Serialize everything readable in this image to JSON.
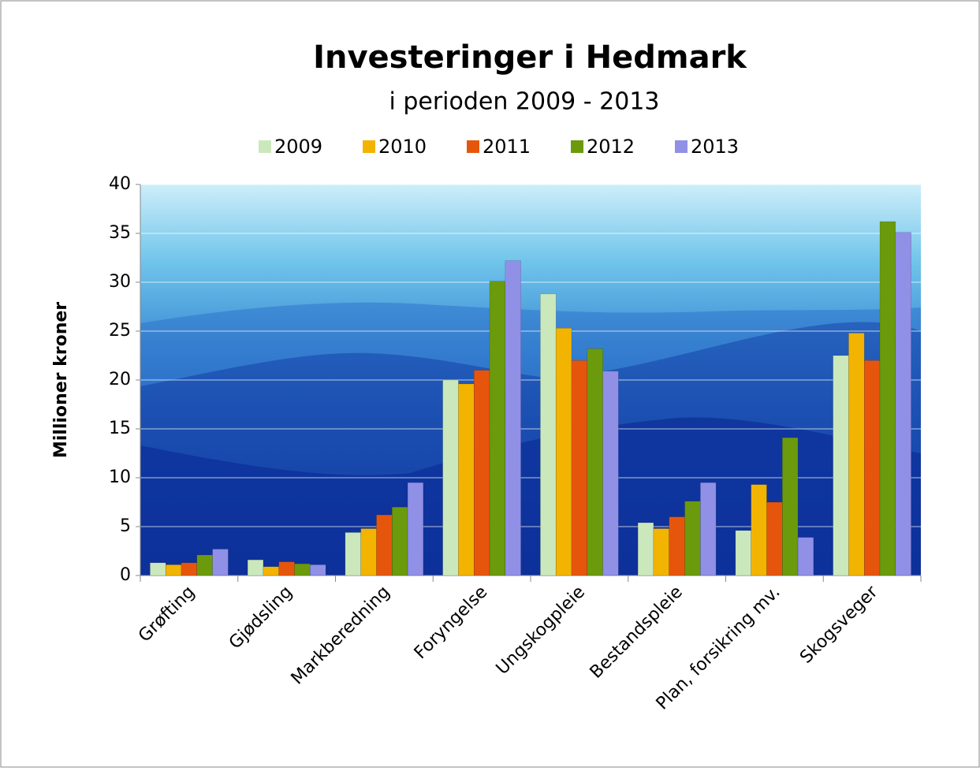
{
  "chart_data": {
    "type": "bar",
    "title": "Investeringer i Hedmark",
    "subtitle": "i perioden 2009 - 2013",
    "y_label": "Millioner kroner",
    "categories": [
      "Grøfting",
      "Gjødsling",
      "Markberedning",
      "Foryngelse",
      "Ungskogpleie",
      "Bestandspleie",
      "Plan, forsikring mv.",
      "Skogsveger"
    ],
    "series": [
      {
        "name": "2009",
        "color": "#cbe8bc",
        "values": [
          1.3,
          1.6,
          4.4,
          20.0,
          28.8,
          5.4,
          4.6,
          22.5
        ]
      },
      {
        "name": "2010",
        "color": "#f2b400",
        "values": [
          1.1,
          0.9,
          4.8,
          19.6,
          25.3,
          4.8,
          9.3,
          24.8
        ]
      },
      {
        "name": "2011",
        "color": "#e5560c",
        "values": [
          1.3,
          1.4,
          6.2,
          21.0,
          22.0,
          6.0,
          7.5,
          22.0
        ]
      },
      {
        "name": "2012",
        "color": "#6b9a0c",
        "values": [
          2.1,
          1.2,
          7.0,
          30.1,
          23.2,
          7.6,
          14.1,
          36.2
        ]
      },
      {
        "name": "2013",
        "color": "#9090e6",
        "values": [
          2.7,
          1.1,
          9.5,
          32.2,
          20.9,
          9.5,
          3.9,
          35.1
        ]
      }
    ],
    "ylim": [
      0,
      40
    ],
    "yticks": [
      0,
      5,
      10,
      15,
      20,
      25,
      30,
      35,
      40
    ],
    "grid": true
  }
}
